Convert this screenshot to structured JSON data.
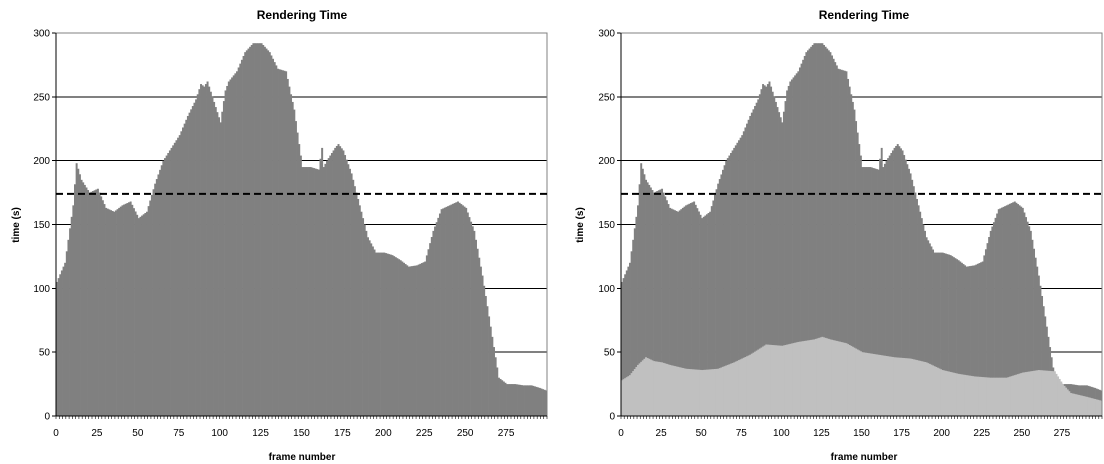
{
  "chart_data": [
    {
      "type": "bar",
      "title": "Rendering Time",
      "xlabel": "frame number",
      "ylabel": "time (s)",
      "ylim": [
        0,
        300
      ],
      "xlim": [
        0,
        300
      ],
      "x_ticks": [
        "0",
        "25",
        "50",
        "75",
        "100",
        "125",
        "150",
        "175",
        "200",
        "225",
        "250",
        "275"
      ],
      "y_ticks": [
        "0",
        "50",
        "100",
        "150",
        "200",
        "250",
        "300"
      ],
      "grid": true,
      "reference_line": 174,
      "series": [
        {
          "color": "#808080",
          "x": [
            0,
            5,
            10,
            12,
            15,
            20,
            25,
            30,
            35,
            40,
            45,
            50,
            55,
            60,
            65,
            70,
            75,
            80,
            85,
            88,
            90,
            92,
            95,
            100,
            103,
            105,
            110,
            115,
            120,
            125,
            130,
            135,
            140,
            145,
            150,
            155,
            160,
            162,
            163,
            165,
            170,
            172,
            175,
            180,
            185,
            190,
            195,
            200,
            205,
            210,
            215,
            220,
            225,
            230,
            235,
            240,
            245,
            250,
            255,
            260,
            265,
            270,
            275,
            280,
            285,
            290,
            295,
            299
          ],
          "values": [
            105,
            120,
            165,
            198,
            185,
            175,
            178,
            163,
            160,
            165,
            168,
            155,
            160,
            182,
            200,
            210,
            220,
            235,
            248,
            260,
            258,
            262,
            250,
            230,
            255,
            262,
            270,
            285,
            292,
            292,
            285,
            272,
            270,
            240,
            195,
            195,
            193,
            210,
            195,
            200,
            210,
            213,
            208,
            190,
            165,
            140,
            128,
            128,
            126,
            122,
            117,
            118,
            121,
            145,
            162,
            165,
            168,
            163,
            145,
            110,
            70,
            30,
            25,
            25,
            24,
            24,
            22,
            20
          ]
        }
      ]
    },
    {
      "type": "bar",
      "title": "Rendering Time",
      "xlabel": "frame number",
      "ylabel": "time (s)",
      "ylim": [
        0,
        300
      ],
      "xlim": [
        0,
        300
      ],
      "x_ticks": [
        "0",
        "25",
        "50",
        "75",
        "100",
        "125",
        "150",
        "175",
        "200",
        "225",
        "250",
        "275"
      ],
      "y_ticks": [
        "0",
        "50",
        "100",
        "150",
        "200",
        "250",
        "300"
      ],
      "grid": true,
      "reference_line": 174,
      "series": [
        {
          "color": "#808080",
          "x": [
            0,
            5,
            10,
            12,
            15,
            20,
            25,
            30,
            35,
            40,
            45,
            50,
            55,
            60,
            65,
            70,
            75,
            80,
            85,
            88,
            90,
            92,
            95,
            100,
            103,
            105,
            110,
            115,
            120,
            125,
            130,
            135,
            140,
            145,
            150,
            155,
            160,
            162,
            163,
            165,
            170,
            172,
            175,
            180,
            185,
            190,
            195,
            200,
            205,
            210,
            215,
            220,
            225,
            230,
            235,
            240,
            245,
            250,
            255,
            260,
            265,
            270,
            275,
            280,
            285,
            290,
            295,
            299
          ],
          "values": [
            105,
            120,
            165,
            198,
            185,
            175,
            178,
            163,
            160,
            165,
            168,
            155,
            160,
            182,
            200,
            210,
            220,
            235,
            248,
            260,
            258,
            262,
            250,
            230,
            255,
            262,
            270,
            285,
            292,
            292,
            285,
            272,
            270,
            240,
            195,
            195,
            193,
            210,
            195,
            200,
            210,
            213,
            208,
            190,
            165,
            140,
            128,
            128,
            126,
            122,
            117,
            118,
            121,
            145,
            162,
            165,
            168,
            163,
            145,
            110,
            70,
            30,
            25,
            25,
            24,
            24,
            22,
            20
          ]
        },
        {
          "color": "#c0c0c0",
          "x": [
            0,
            5,
            10,
            15,
            20,
            25,
            30,
            40,
            50,
            60,
            70,
            80,
            90,
            100,
            110,
            120,
            125,
            130,
            140,
            150,
            160,
            170,
            180,
            190,
            200,
            210,
            220,
            230,
            240,
            250,
            260,
            270,
            275,
            280,
            290,
            299
          ],
          "values": [
            28,
            32,
            40,
            46,
            43,
            42,
            40,
            37,
            36,
            37,
            42,
            48,
            56,
            55,
            58,
            60,
            62,
            60,
            57,
            50,
            48,
            46,
            45,
            42,
            36,
            33,
            31,
            30,
            30,
            34,
            36,
            35,
            25,
            18,
            15,
            12
          ]
        }
      ]
    }
  ]
}
